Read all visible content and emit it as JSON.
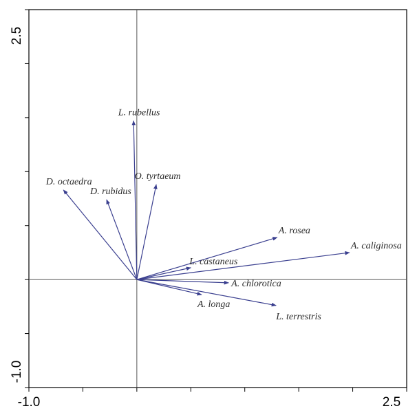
{
  "chart_data": {
    "type": "biplot",
    "title": "",
    "xlabel": "",
    "ylabel": "",
    "xlim": [
      -1.0,
      2.5
    ],
    "ylim": [
      -1.0,
      2.5
    ],
    "x_tick_labels": [
      "-1.0",
      "2.5"
    ],
    "y_tick_labels": [
      "2.5",
      "-1.0"
    ],
    "grid": false,
    "arrow_color": "#3a3f8f",
    "label_color": "#2b2b2b",
    "vectors": [
      {
        "label": "L. rubellus",
        "x": -0.03,
        "y": 1.47
      },
      {
        "label": "O. tyrtaeum",
        "x": 0.18,
        "y": 0.88
      },
      {
        "label": "D. octaedra",
        "x": -0.68,
        "y": 0.83
      },
      {
        "label": "D. rubidus",
        "x": -0.28,
        "y": 0.74
      },
      {
        "label": "A. rosea",
        "x": 1.3,
        "y": 0.39
      },
      {
        "label": "A. caliginosa",
        "x": 1.97,
        "y": 0.25
      },
      {
        "label": "L. castaneus",
        "x": 0.5,
        "y": 0.11
      },
      {
        "label": "A. chlorotica",
        "x": 0.85,
        "y": -0.03
      },
      {
        "label": "A. longa",
        "x": 0.6,
        "y": -0.14
      },
      {
        "label": "L. terrestris",
        "x": 1.29,
        "y": -0.24
      }
    ]
  }
}
